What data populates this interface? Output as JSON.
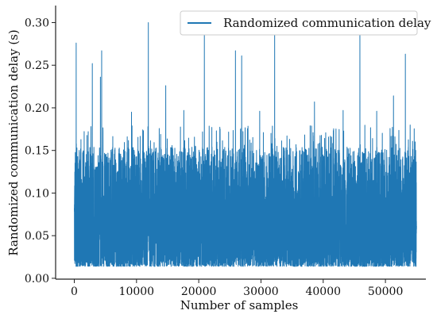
{
  "chart_data": {
    "type": "line",
    "title": "",
    "xlabel": "Number of samples",
    "ylabel": "Randomized communication delay (s)",
    "xlim": [
      -3000,
      56500
    ],
    "ylim": [
      -0.001,
      0.32
    ],
    "xticks": [
      0,
      10000,
      20000,
      30000,
      40000,
      50000
    ],
    "xtick_labels": [
      "0",
      "10000",
      "20000",
      "30000",
      "40000",
      "50000"
    ],
    "yticks": [
      0.0,
      0.05,
      0.1,
      0.15,
      0.2,
      0.25,
      0.3
    ],
    "ytick_labels": [
      "0.00",
      "0.05",
      "0.10",
      "0.15",
      "0.20",
      "0.25",
      "0.30"
    ],
    "grid": false,
    "legend_position": "top-right",
    "series": [
      {
        "name": "Randomized communication delay",
        "color": "#1f77b4",
        "x_range": [
          0,
          55000
        ],
        "n_samples": 55000,
        "typical_range": [
          0.015,
          0.15
        ],
        "spikes": [
          {
            "x": 300,
            "y": 0.276
          },
          {
            "x": 2900,
            "y": 0.252
          },
          {
            "x": 4400,
            "y": 0.267
          },
          {
            "x": 4200,
            "y": 0.236
          },
          {
            "x": 11900,
            "y": 0.3
          },
          {
            "x": 14700,
            "y": 0.226
          },
          {
            "x": 20900,
            "y": 0.286
          },
          {
            "x": 25900,
            "y": 0.267
          },
          {
            "x": 26900,
            "y": 0.261
          },
          {
            "x": 32200,
            "y": 0.303
          },
          {
            "x": 38600,
            "y": 0.207
          },
          {
            "x": 45900,
            "y": 0.292
          },
          {
            "x": 53200,
            "y": 0.263
          },
          {
            "x": 51300,
            "y": 0.214
          },
          {
            "x": 9200,
            "y": 0.195
          },
          {
            "x": 17600,
            "y": 0.197
          },
          {
            "x": 29800,
            "y": 0.196
          },
          {
            "x": 43200,
            "y": 0.197
          },
          {
            "x": 48600,
            "y": 0.196
          }
        ]
      }
    ]
  }
}
